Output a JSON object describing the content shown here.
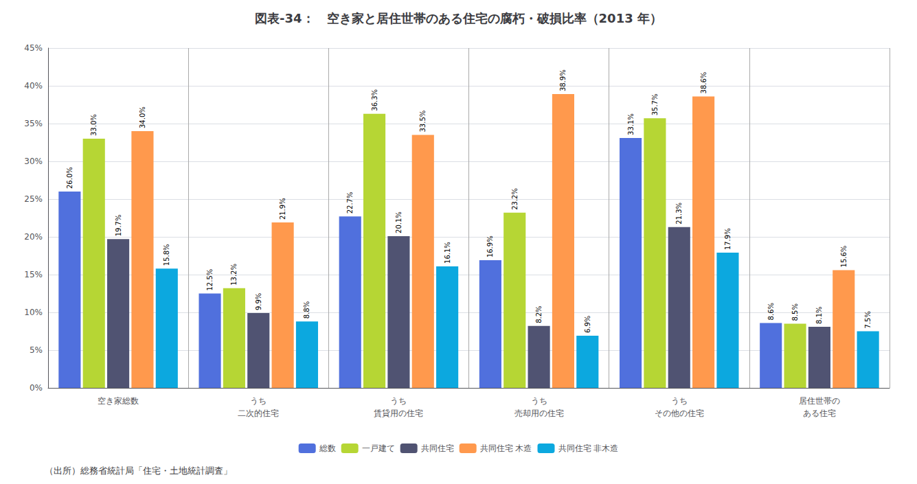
{
  "chart_data": {
    "type": "bar",
    "title": "図表-34：　空き家と居住世帯のある住宅の腐朽・破損比率（2013 年）",
    "annotations": [
      "（出所）総務省統計局「住宅・土地統計調査」"
    ],
    "categories": [
      "空き家総数",
      "うち\n二次的住宅",
      "うち\n賃貸用の住宅",
      "うち\n売却用の住宅",
      "うち\nその他の住宅",
      "居住世帯の\nある住宅"
    ],
    "series": [
      {
        "name": "総数",
        "values": [
          26.0,
          12.5,
          22.7,
          16.9,
          33.1,
          8.6
        ],
        "value_labels": [
          "26.0%",
          "12.5%",
          "22.7%",
          "16.9%",
          "33.1%",
          "8.6%"
        ]
      },
      {
        "name": "一戸建て",
        "values": [
          33.0,
          13.2,
          36.3,
          23.2,
          35.7,
          8.5
        ],
        "value_labels": [
          "33.0%",
          "13.2%",
          "36.3%",
          "23.2%",
          "35.7%",
          "8.5%"
        ]
      },
      {
        "name": "共同住宅",
        "values": [
          19.7,
          9.9,
          20.1,
          8.2,
          21.3,
          8.1
        ],
        "value_labels": [
          "19.7%",
          "9.9%",
          "20.1%",
          "8.2%",
          "21.3%",
          "8.1%"
        ]
      },
      {
        "name": "共同住宅 木造",
        "values": [
          34.0,
          21.9,
          33.5,
          38.9,
          38.6,
          15.6
        ],
        "value_labels": [
          "34.0%",
          "21.9%",
          "33.5%",
          "38.9%",
          "38.6%",
          "15.6%"
        ]
      },
      {
        "name": "共同住宅 非木造",
        "values": [
          15.8,
          8.8,
          16.1,
          6.9,
          17.9,
          7.5
        ],
        "value_labels": [
          "15.8%",
          "8.8%",
          "16.1%",
          "6.9%",
          "17.9%",
          "7.5%"
        ]
      }
    ],
    "ylim": [
      0,
      45
    ],
    "yticks": [
      {
        "value": 0,
        "label": "0%"
      },
      {
        "value": 5,
        "label": "5%"
      },
      {
        "value": 10,
        "label": "10%"
      },
      {
        "value": 15,
        "label": "15%"
      },
      {
        "value": 20,
        "label": "20%"
      },
      {
        "value": 25,
        "label": "25%"
      },
      {
        "value": 30,
        "label": "30%"
      },
      {
        "value": 35,
        "label": "35%"
      },
      {
        "value": 40,
        "label": "40%"
      },
      {
        "value": 45,
        "label": "45%"
      }
    ],
    "grid": true,
    "legend": "bottom",
    "data_labels": true
  }
}
